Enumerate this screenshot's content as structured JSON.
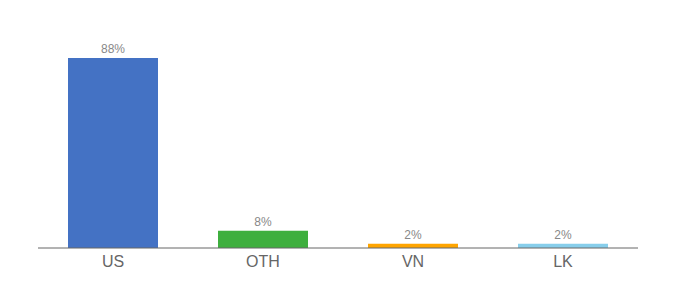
{
  "chart_data": {
    "type": "bar",
    "categories": [
      "US",
      "OTH",
      "VN",
      "LK"
    ],
    "values": [
      88,
      8,
      2,
      2
    ],
    "value_labels": [
      "88%",
      "8%",
      "2%",
      "2%"
    ],
    "data_labels": true,
    "colors": [
      "#4472C4",
      "#3EAF3E",
      "#FFA500",
      "#87CEEB"
    ],
    "ylim": [
      0,
      100
    ],
    "tick_labels": "x",
    "grid": false
  }
}
